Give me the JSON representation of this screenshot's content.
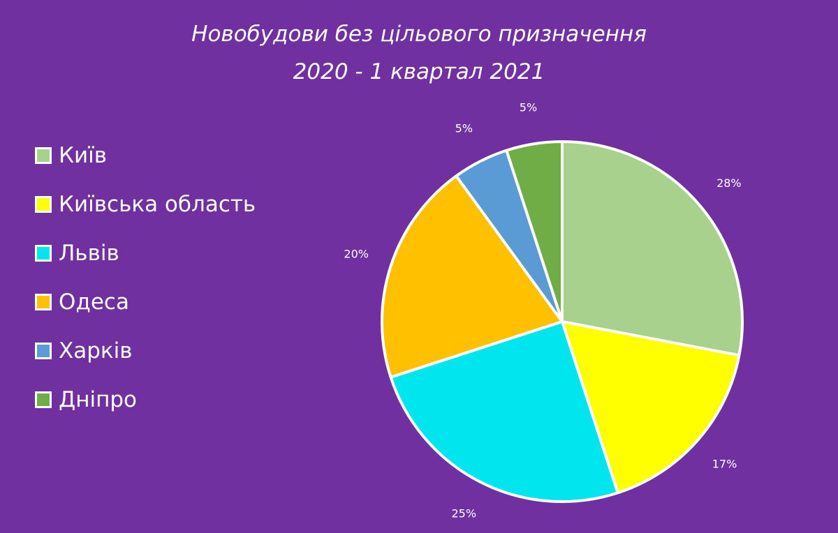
{
  "chart_data": {
    "type": "pie",
    "title": "Новобудови без цільового призначення",
    "subtitle": "2020 - 1 квартал 2021",
    "categories": [
      "Київ",
      "Київська область",
      "Львів",
      "Одеса",
      "Харків",
      "Дніпро"
    ],
    "values": [
      28,
      17,
      25,
      20,
      5,
      5
    ],
    "labels": [
      "28%",
      "17%",
      "25%",
      "20%",
      "5%",
      "5%"
    ],
    "colors": [
      "#a9d18e",
      "#ffff00",
      "#00e5ee",
      "#ffc000",
      "#5b9bd5",
      "#70ad47"
    ],
    "legend_position": "left",
    "start_angle": "top",
    "direction": "clockwise"
  },
  "background_color": "#7030a0"
}
